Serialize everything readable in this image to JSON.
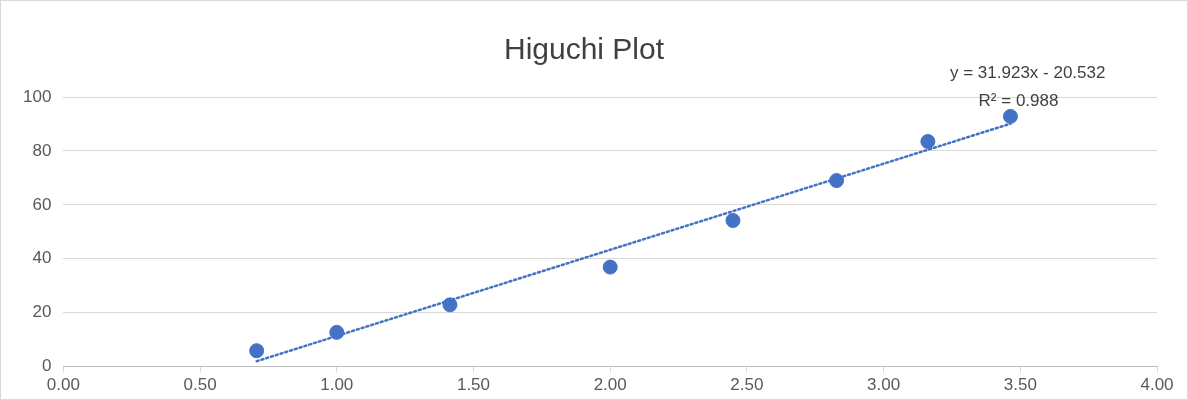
{
  "chart_data": {
    "type": "scatter",
    "title": "Higuchi Plot",
    "x": [
      0.707,
      1.0,
      1.414,
      2.0,
      2.449,
      2.828,
      3.162,
      3.464
    ],
    "series": [
      {
        "color": "#4472c4",
        "values": [
          5.9,
          12.7,
          22.9,
          36.9,
          54.2,
          69,
          83.5,
          92.8
        ]
      },
      {
        "type": "line",
        "color": "#4472c4",
        "x": [
          0.707,
          3.464
        ],
        "values": [
          2.0,
          90.1
        ],
        "line_style": "dotted",
        "marker": "none"
      }
    ],
    "xlim": [
      0,
      4
    ],
    "xticks": [
      {
        "value": 0,
        "label": "0.00"
      },
      {
        "value": 0.5,
        "label": "0.50"
      },
      {
        "value": 1,
        "label": "1.00"
      },
      {
        "value": 1.5,
        "label": "1.50"
      },
      {
        "value": 2,
        "label": "2.00"
      },
      {
        "value": 2.5,
        "label": "2.50"
      },
      {
        "value": 3,
        "label": "3.00"
      },
      {
        "value": 3.5,
        "label": "3.50"
      },
      {
        "value": 4,
        "label": "4.00"
      }
    ],
    "ylim": [
      0,
      100
    ],
    "yticks": [
      0,
      20,
      40,
      60,
      80,
      100
    ],
    "grid": "y",
    "marker": "circle",
    "legend": false,
    "annotations": [
      "y = 31.923x - 20.532",
      "R² = 0.988"
    ]
  }
}
